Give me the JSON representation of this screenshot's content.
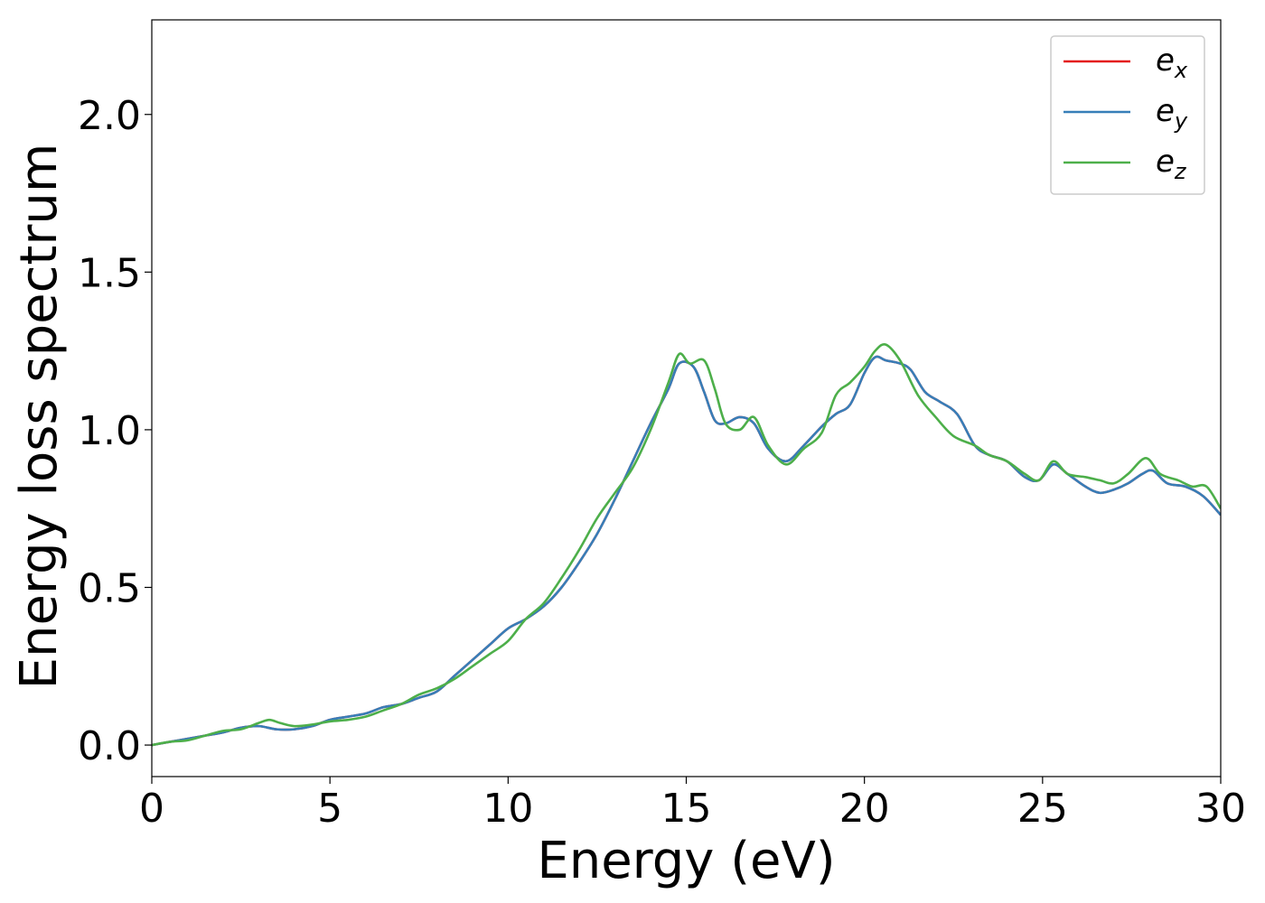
{
  "chart_data": {
    "type": "line",
    "title": "",
    "xlabel": "Energy (eV)",
    "ylabel": "Energy loss spectrum",
    "xlim": [
      0,
      30
    ],
    "ylim": [
      -0.1,
      2.3
    ],
    "xticks": [
      0,
      5,
      10,
      15,
      20,
      25,
      30
    ],
    "xtick_labels": [
      "0",
      "5",
      "10",
      "15",
      "20",
      "25",
      "30"
    ],
    "yticks": [
      0.0,
      0.5,
      1.0,
      1.5,
      2.0
    ],
    "ytick_labels": [
      "0.0",
      "0.5",
      "1.0",
      "1.5",
      "2.0"
    ],
    "grid": false,
    "legend_position": "top-right",
    "series": [
      {
        "name": "e_x",
        "legend_base": "e",
        "legend_sub": "x",
        "color": "#e41a1c",
        "x": [
          0,
          0.5,
          1,
          1.5,
          2,
          2.5,
          3,
          3.5,
          4,
          4.5,
          5,
          5.5,
          6,
          6.5,
          7,
          7.5,
          8,
          8.5,
          9,
          9.5,
          10,
          10.5,
          11,
          11.5,
          12,
          12.5,
          13,
          13.5,
          14,
          14.5,
          14.8,
          15.2,
          15.5,
          15.8,
          16.1,
          16.5,
          16.9,
          17.3,
          17.8,
          18.3,
          18.8,
          19.2,
          19.6,
          20.0,
          20.3,
          20.6,
          21.0,
          21.3,
          21.7,
          22.1,
          22.6,
          23.1,
          23.5,
          24.0,
          24.5,
          24.9,
          25.3,
          25.7,
          26.2,
          26.6,
          27.0,
          27.4,
          27.8,
          28.1,
          28.5,
          29.0,
          29.5,
          30.0
        ],
        "y": [
          0.0,
          0.01,
          0.02,
          0.03,
          0.04,
          0.055,
          0.06,
          0.05,
          0.05,
          0.06,
          0.08,
          0.09,
          0.1,
          0.12,
          0.13,
          0.15,
          0.17,
          0.22,
          0.27,
          0.32,
          0.37,
          0.4,
          0.44,
          0.5,
          0.58,
          0.67,
          0.78,
          0.9,
          1.02,
          1.13,
          1.21,
          1.2,
          1.12,
          1.03,
          1.02,
          1.04,
          1.02,
          0.94,
          0.9,
          0.95,
          1.01,
          1.05,
          1.08,
          1.18,
          1.23,
          1.22,
          1.21,
          1.19,
          1.12,
          1.09,
          1.05,
          0.95,
          0.92,
          0.9,
          0.85,
          0.84,
          0.89,
          0.86,
          0.82,
          0.8,
          0.81,
          0.83,
          0.86,
          0.87,
          0.83,
          0.82,
          0.79,
          0.73
        ]
      },
      {
        "name": "e_y",
        "legend_base": "e",
        "legend_sub": "y",
        "color": "#377eb8",
        "x": [
          0,
          0.5,
          1,
          1.5,
          2,
          2.5,
          3,
          3.5,
          4,
          4.5,
          5,
          5.5,
          6,
          6.5,
          7,
          7.5,
          8,
          8.5,
          9,
          9.5,
          10,
          10.5,
          11,
          11.5,
          12,
          12.5,
          13,
          13.5,
          14,
          14.5,
          14.8,
          15.2,
          15.5,
          15.8,
          16.1,
          16.5,
          16.9,
          17.3,
          17.8,
          18.3,
          18.8,
          19.2,
          19.6,
          20.0,
          20.3,
          20.6,
          21.0,
          21.3,
          21.7,
          22.1,
          22.6,
          23.1,
          23.5,
          24.0,
          24.5,
          24.9,
          25.3,
          25.7,
          26.2,
          26.6,
          27.0,
          27.4,
          27.8,
          28.1,
          28.5,
          29.0,
          29.5,
          30.0
        ],
        "y": [
          0.0,
          0.01,
          0.02,
          0.03,
          0.04,
          0.055,
          0.06,
          0.05,
          0.05,
          0.06,
          0.08,
          0.09,
          0.1,
          0.12,
          0.13,
          0.15,
          0.17,
          0.22,
          0.27,
          0.32,
          0.37,
          0.4,
          0.44,
          0.5,
          0.58,
          0.67,
          0.78,
          0.9,
          1.02,
          1.13,
          1.21,
          1.2,
          1.12,
          1.03,
          1.02,
          1.04,
          1.02,
          0.94,
          0.9,
          0.95,
          1.01,
          1.05,
          1.08,
          1.18,
          1.23,
          1.22,
          1.21,
          1.19,
          1.12,
          1.09,
          1.05,
          0.95,
          0.92,
          0.9,
          0.85,
          0.84,
          0.89,
          0.86,
          0.82,
          0.8,
          0.81,
          0.83,
          0.86,
          0.87,
          0.83,
          0.82,
          0.79,
          0.73
        ]
      },
      {
        "name": "e_z",
        "legend_base": "e",
        "legend_sub": "z",
        "color": "#4daf4a",
        "x": [
          0,
          0.5,
          1,
          1.5,
          2,
          2.5,
          3,
          3.3,
          3.6,
          4,
          4.5,
          5,
          5.5,
          6,
          6.5,
          7,
          7.5,
          8,
          8.5,
          9,
          9.5,
          10,
          10.5,
          11,
          11.5,
          12,
          12.5,
          13,
          13.5,
          14,
          14.5,
          14.8,
          15.1,
          15.5,
          15.8,
          16.1,
          16.5,
          16.9,
          17.3,
          17.8,
          18.3,
          18.8,
          19.2,
          19.6,
          20.0,
          20.3,
          20.6,
          21.0,
          21.5,
          22.0,
          22.5,
          23.1,
          23.5,
          24.0,
          24.5,
          24.9,
          25.3,
          25.7,
          26.2,
          26.6,
          27.0,
          27.4,
          27.9,
          28.3,
          28.8,
          29.2,
          29.6,
          30.0
        ],
        "y": [
          0.0,
          0.01,
          0.015,
          0.03,
          0.045,
          0.05,
          0.07,
          0.08,
          0.07,
          0.06,
          0.065,
          0.075,
          0.08,
          0.09,
          0.11,
          0.13,
          0.16,
          0.18,
          0.21,
          0.25,
          0.29,
          0.33,
          0.4,
          0.45,
          0.53,
          0.62,
          0.72,
          0.8,
          0.88,
          1.0,
          1.15,
          1.24,
          1.21,
          1.22,
          1.13,
          1.02,
          1.0,
          1.04,
          0.95,
          0.89,
          0.94,
          0.99,
          1.11,
          1.15,
          1.2,
          1.25,
          1.27,
          1.22,
          1.11,
          1.04,
          0.98,
          0.95,
          0.92,
          0.9,
          0.86,
          0.84,
          0.9,
          0.86,
          0.85,
          0.84,
          0.83,
          0.86,
          0.91,
          0.86,
          0.84,
          0.82,
          0.82,
          0.75
        ]
      }
    ]
  }
}
